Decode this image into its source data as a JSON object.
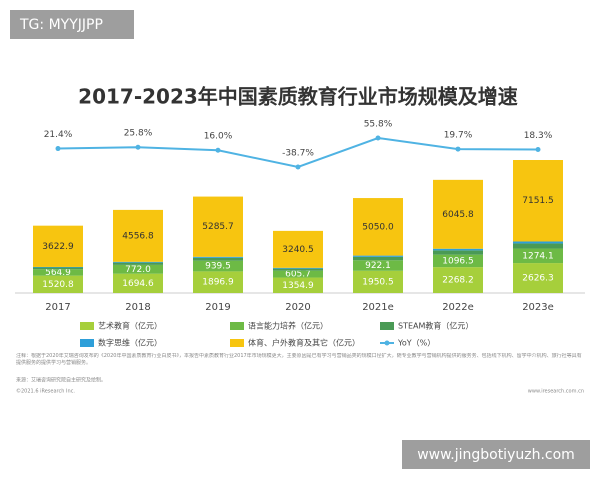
{
  "chart_data": {
    "type": "stacked-bar-line",
    "title": "2017-2023年中国素质教育行业市场规模及增速",
    "categories": [
      "2017",
      "2018",
      "2019",
      "2020",
      "2021e",
      "2022e",
      "2023e"
    ],
    "series": [
      {
        "name": "艺术教育（亿元）",
        "color": "#a6cf3b",
        "values": [
          1520.8,
          1694.6,
          1896.9,
          1354.9,
          1950.5,
          2268.2,
          2626.3
        ],
        "value_labels": [
          "1520.8",
          "1694.6",
          "1896.9",
          "1354.9",
          "1950.5",
          "2268.2",
          "2626.3"
        ]
      },
      {
        "name": "语言能力培养（亿元）",
        "color": "#6dba45",
        "values": [
          564.9,
          772.0,
          939.5,
          605.7,
          922.1,
          1096.5,
          1274.1
        ],
        "value_labels": [
          "564.9",
          "772.0",
          "939.5",
          "605.7",
          "922.1",
          "1096.5",
          "1274.1"
        ]
      },
      {
        "name": "STEAM教育（亿元）",
        "color": "#4a9a55",
        "values": [
          150,
          200,
          250,
          180,
          300,
          380,
          450
        ]
      },
      {
        "name": "数字思维（亿元）",
        "color": "#2e9fd9",
        "values": [
          50,
          70,
          90,
          70,
          110,
          140,
          170
        ]
      },
      {
        "name": "体育、户外教育及其它（亿元）",
        "color": "#f7c510",
        "values": [
          3622.9,
          4556.8,
          5285.7,
          3240.5,
          5050.0,
          6045.8,
          7151.5
        ],
        "value_labels": [
          "3622.9",
          "4556.8",
          "5285.7",
          "3240.5",
          "5050.0",
          "6045.8",
          "7151.5"
        ]
      },
      {
        "name": "YoY（%）",
        "color": "#4fb3e3",
        "type": "line",
        "values": [
          21.4,
          25.8,
          16.0,
          -38.7,
          55.8,
          19.7,
          18.3
        ],
        "value_labels": [
          "21.4%",
          "25.8%",
          "16.0%",
          "-38.7%",
          "55.8%",
          "19.7%",
          "18.3%"
        ]
      }
    ],
    "stacked": true,
    "legend": "bottom",
    "note": "注释：根据于2020年艾瑞咨询发布的《2020年中国素质教育行业白皮书》，本报告中素质教育行业2017年市场规模更大，主要原因是已有学习与营销品类的规模口径扩大，随专业教学与营销机构提供的服务务、包括线下机构、留学中介机构、旅行社等具有提供服务的提供学习与营销服务。",
    "source": "来源：艾瑞咨询研究院自主研究及绘制。",
    "copyright": "©2021.6 iResearch Inc.",
    "website": "www.iresearch.com.cn"
  },
  "overlays": {
    "top_left": "TG: MYYJJPP",
    "bottom_right": "www.jingbotiyuzh.com"
  }
}
